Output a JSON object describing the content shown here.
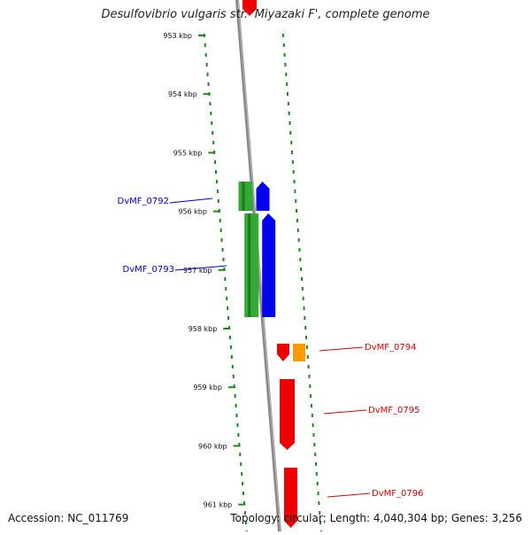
{
  "title": "Desulfovibrio vulgaris str. 'Miyazaki F', complete genome",
  "footer": {
    "accession": "Accession: NC_011769",
    "summary": "Topology: circular; Length: 4,040,304 bp; Genes: 3,256"
  },
  "ticks": [
    {
      "label": "953 kbp",
      "kbp": 953
    },
    {
      "label": "954 kbp",
      "kbp": 954
    },
    {
      "label": "955 kbp",
      "kbp": 955
    },
    {
      "label": "956 kbp",
      "kbp": 956
    },
    {
      "label": "957 kbp",
      "kbp": 957
    },
    {
      "label": "958 kbp",
      "kbp": 958
    },
    {
      "label": "959 kbp",
      "kbp": 959
    },
    {
      "label": "960 kbp",
      "kbp": 960
    },
    {
      "label": "961 kbp",
      "kbp": 961
    }
  ],
  "genes": [
    {
      "id": "DvMF_0792",
      "strand": "left",
      "label_color": "#0000cc"
    },
    {
      "id": "DvMF_0793",
      "strand": "left",
      "label_color": "#0000cc"
    },
    {
      "id": "DvMF_0794",
      "strand": "right",
      "label_color": "#dd0000"
    },
    {
      "id": "DvMF_0795",
      "strand": "right",
      "label_color": "#dd0000"
    },
    {
      "id": "DvMF_0796",
      "strand": "right",
      "label_color": "#dd0000"
    }
  ],
  "colors": {
    "backbone": "#8a8a8a",
    "dots": "#1a8a1a",
    "cds_left_inner": "#0000ee",
    "cds_left_outer": "#33aa33",
    "cds_right_inner": "#ee0000",
    "cds_right_outer": "#ff9900"
  }
}
